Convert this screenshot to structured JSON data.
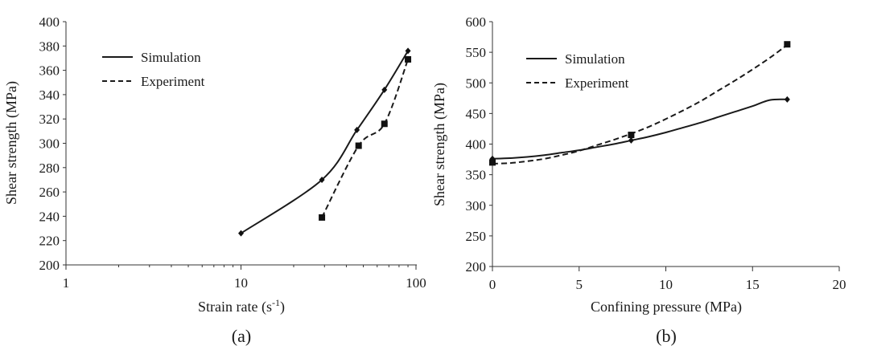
{
  "chart_data": [
    {
      "type": "line",
      "panel_label": "(a)",
      "xscale": "log",
      "xlabel_prefix": "Strain rate (s",
      "xlabel_sup": "-1",
      "xlabel_suffix": ")",
      "ylabel": "Shear strength (MPa)",
      "xlim": [
        1,
        100
      ],
      "ylim": [
        200,
        400
      ],
      "xticks": [
        1,
        10,
        100
      ],
      "xtick_labels": [
        "1",
        "10",
        "100"
      ],
      "yticks": [
        200,
        220,
        240,
        260,
        280,
        300,
        320,
        340,
        360,
        380,
        400
      ],
      "ytick_labels": [
        "200",
        "220",
        "240",
        "260",
        "280",
        "300",
        "320",
        "340",
        "360",
        "380",
        "400"
      ],
      "grid": false,
      "legend_position": "top-left",
      "series": [
        {
          "name": "Simulation",
          "line_style": "solid",
          "marker": "diamond",
          "points": [
            [
              10,
              226
            ],
            [
              29,
              270
            ],
            [
              46,
              311
            ],
            [
              66,
              344
            ],
            [
              90,
              376
            ]
          ]
        },
        {
          "name": "Experiment",
          "line_style": "dashed",
          "marker": "square",
          "points": [
            [
              29,
              239
            ],
            [
              47,
              298
            ],
            [
              66,
              316
            ],
            [
              90,
              369
            ]
          ]
        }
      ]
    },
    {
      "type": "line",
      "panel_label": "(b)",
      "xscale": "linear",
      "xlabel": "Confining pressure (MPa)",
      "ylabel": "Shear strength (MPa)",
      "xlim": [
        0,
        20
      ],
      "ylim": [
        200,
        600
      ],
      "xticks": [
        0,
        5,
        10,
        15,
        20
      ],
      "xtick_labels": [
        "0",
        "5",
        "10",
        "15",
        "20"
      ],
      "yticks": [
        200,
        250,
        300,
        350,
        400,
        450,
        500,
        550,
        600
      ],
      "ytick_labels": [
        "200",
        "250",
        "300",
        "350",
        "400",
        "450",
        "500",
        "550",
        "600"
      ],
      "grid": false,
      "legend_position": "top-left",
      "series": [
        {
          "name": "Simulation",
          "line_style": "solid",
          "marker": "diamond",
          "points": [
            [
              0,
              376
            ],
            [
              8,
              406
            ],
            [
              17,
              473
            ]
          ],
          "curve_x": [
            0,
            1,
            2,
            3,
            4,
            5,
            6,
            7,
            8,
            9,
            10,
            11,
            12,
            13,
            14,
            15,
            16,
            17
          ],
          "curve_y": [
            376,
            377,
            379,
            382,
            386,
            390,
            395,
            400,
            406,
            412,
            419,
            427,
            435,
            444,
            453,
            462,
            472,
            473
          ]
        },
        {
          "name": "Experiment",
          "line_style": "dashed",
          "marker": "square",
          "points": [
            [
              0,
              370
            ],
            [
              8,
              415
            ],
            [
              17,
              563
            ]
          ],
          "curve_x": [
            0,
            1,
            2,
            3,
            4,
            5,
            6,
            7,
            8,
            9,
            10,
            11,
            12,
            13,
            14,
            15,
            16,
            17
          ],
          "curve_y": [
            368,
            369,
            372,
            376,
            382,
            389,
            398,
            407,
            417,
            428,
            441,
            455,
            470,
            487,
            504,
            522,
            541,
            562
          ]
        }
      ]
    }
  ]
}
